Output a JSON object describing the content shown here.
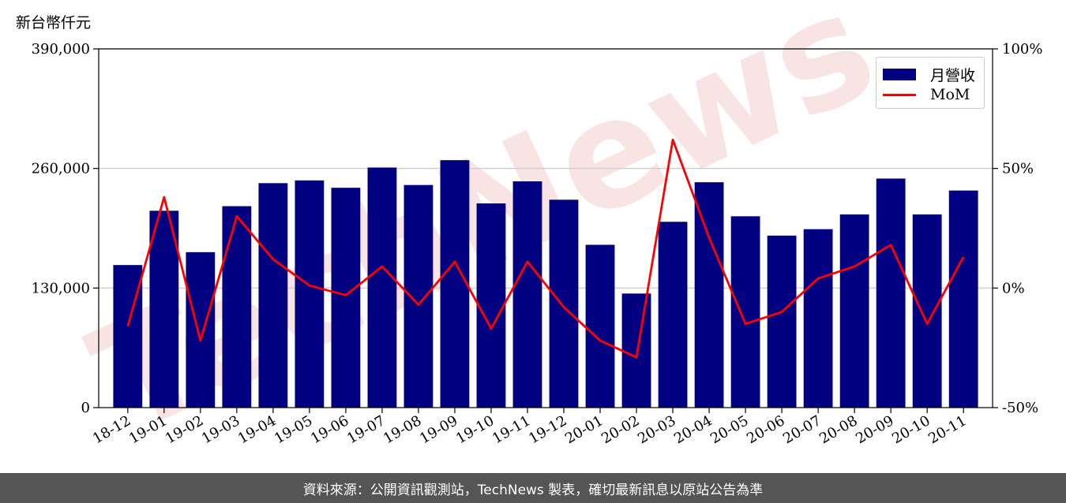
{
  "unit_label": "新台幣仟元",
  "footer_text": "資料來源：公開資訊觀測站，TechNews 製表，確切最新訊息以原站公告為準",
  "watermark_text": "TechNews",
  "colors": {
    "bar": "#000080",
    "line": "#ff0000",
    "footer_bg": "#555555",
    "watermark": "#f7dada"
  },
  "chart_data": {
    "type": "bar",
    "categories": [
      "18-12",
      "19-01",
      "19-02",
      "19-03",
      "19-04",
      "19-05",
      "19-06",
      "19-07",
      "19-08",
      "19-09",
      "19-10",
      "19-11",
      "19-12",
      "20-01",
      "20-02",
      "20-03",
      "20-04",
      "20-05",
      "20-06",
      "20-07",
      "20-08",
      "20-09",
      "20-10",
      "20-11"
    ],
    "series": [
      {
        "name": "月營收",
        "type": "bar",
        "axis": "left",
        "values": [
          155000,
          214000,
          169000,
          219000,
          244000,
          247000,
          239000,
          261000,
          242000,
          269000,
          222000,
          246000,
          226000,
          177000,
          124000,
          202000,
          245000,
          208000,
          187000,
          194000,
          210000,
          249000,
          210000,
          236000
        ]
      },
      {
        "name": "MoM",
        "type": "line",
        "axis": "right",
        "values": [
          -16,
          38,
          -22,
          30,
          12,
          1,
          -3,
          9,
          -7,
          11,
          -17,
          11,
          -8,
          -22,
          -29,
          62,
          21,
          -15,
          -10,
          4,
          9,
          18,
          -15,
          13
        ]
      }
    ],
    "ylim_left": [
      0,
      390000
    ],
    "yticks_left": [
      "0",
      "130,000",
      "260,000",
      "390,000"
    ],
    "ylim_right": [
      -50,
      100
    ],
    "yticks_right": [
      "-50%",
      "0%",
      "50%",
      "100%"
    ],
    "grid": "horizontal",
    "legend": "top-right"
  }
}
